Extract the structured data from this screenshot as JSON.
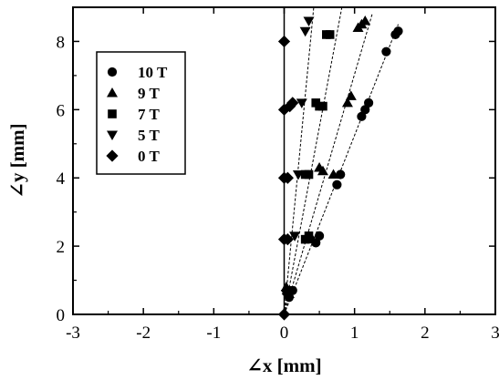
{
  "chart_data": {
    "type": "scatter",
    "xlabel": "∠x [mm]",
    "ylabel": "∠y [mm]",
    "xlim": [
      -3,
      3
    ],
    "ylim": [
      0,
      9
    ],
    "xticks": [
      "-3",
      "-2",
      "-1",
      "0",
      "1",
      "2",
      "3"
    ],
    "yticks": [
      "0",
      "2",
      "4",
      "6",
      "8"
    ],
    "legend_position": "upper-left",
    "series": [
      {
        "name": "10 T",
        "marker": "circle",
        "points": [
          [
            0.07,
            0.5
          ],
          [
            0.12,
            0.7
          ],
          [
            0.45,
            2.1
          ],
          [
            0.5,
            2.3
          ],
          [
            0.75,
            3.8
          ],
          [
            0.8,
            4.1
          ],
          [
            1.1,
            5.8
          ],
          [
            1.15,
            6.0
          ],
          [
            1.2,
            6.2
          ],
          [
            1.45,
            7.7
          ],
          [
            1.58,
            8.2
          ],
          [
            1.62,
            8.3
          ]
        ],
        "trend": [
          [
            0,
            0
          ],
          [
            1.62,
            8.5
          ]
        ]
      },
      {
        "name": "9 T",
        "marker": "triangle-up",
        "points": [
          [
            0.03,
            0.8
          ],
          [
            0.07,
            0.6
          ],
          [
            0.35,
            2.3
          ],
          [
            0.4,
            2.2
          ],
          [
            0.5,
            4.3
          ],
          [
            0.55,
            4.2
          ],
          [
            0.7,
            4.1
          ],
          [
            0.9,
            6.2
          ],
          [
            0.95,
            6.4
          ],
          [
            1.05,
            8.4
          ],
          [
            1.1,
            8.5
          ],
          [
            1.15,
            8.6
          ]
        ],
        "trend": [
          [
            0,
            0
          ],
          [
            1.25,
            8.8
          ]
        ]
      },
      {
        "name": "7 T",
        "marker": "square",
        "points": [
          [
            0.05,
            0.7
          ],
          [
            0.3,
            2.2
          ],
          [
            0.35,
            2.3
          ],
          [
            0.3,
            4.1
          ],
          [
            0.35,
            4.1
          ],
          [
            0.45,
            6.2
          ],
          [
            0.5,
            6.1
          ],
          [
            0.55,
            6.1
          ],
          [
            0.6,
            8.2
          ],
          [
            0.65,
            8.2
          ]
        ],
        "trend": [
          [
            0,
            0
          ],
          [
            0.82,
            9.0
          ]
        ]
      },
      {
        "name": "5 T",
        "marker": "triangle-down",
        "points": [
          [
            0.03,
            0.6
          ],
          [
            0.15,
            2.3
          ],
          [
            0.2,
            4.1
          ],
          [
            0.25,
            6.2
          ],
          [
            0.3,
            8.3
          ],
          [
            0.35,
            8.6
          ]
        ],
        "trend": [
          [
            0,
            0
          ],
          [
            0.42,
            9.0
          ]
        ]
      },
      {
        "name": "0 T",
        "marker": "diamond",
        "points": [
          [
            0.0,
            0.0
          ],
          [
            0.0,
            2.2
          ],
          [
            0.0,
            4.0
          ],
          [
            0.0,
            6.0
          ],
          [
            0.0,
            8.0
          ],
          [
            0.05,
            0.6
          ],
          [
            0.05,
            2.2
          ],
          [
            0.05,
            4.0
          ],
          [
            0.08,
            6.1
          ],
          [
            0.12,
            6.2
          ]
        ],
        "trend": null
      }
    ]
  }
}
